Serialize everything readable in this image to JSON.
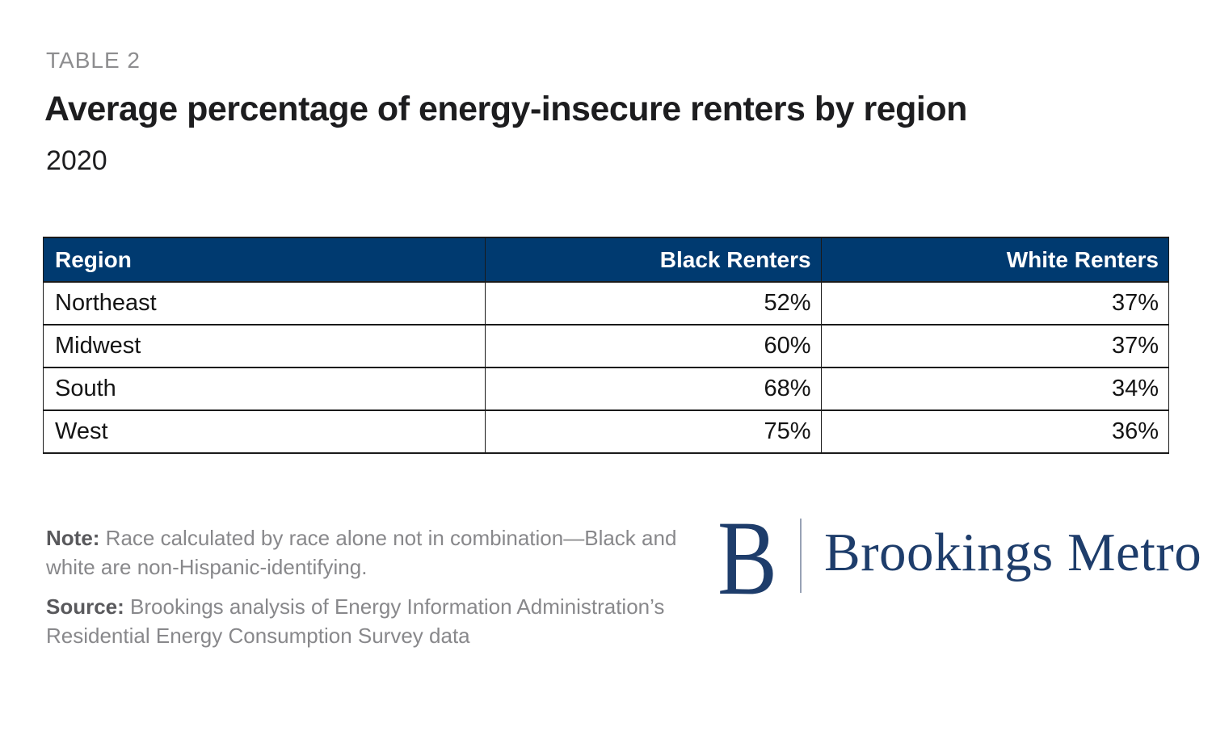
{
  "header": {
    "eyebrow": "TABLE 2",
    "title": "Average percentage of energy-insecure renters by region",
    "subtitle": "2020"
  },
  "chart_data": {
    "type": "table",
    "title": "Average percentage of energy-insecure renters by region",
    "subtitle": "2020",
    "columns": [
      "Region",
      "Black Renters",
      "White Renters"
    ],
    "rows": [
      [
        "Northeast",
        "52%",
        "37%"
      ],
      [
        "Midwest",
        "60%",
        "37%"
      ],
      [
        "South",
        "68%",
        "34%"
      ],
      [
        "West",
        "75%",
        "36%"
      ]
    ],
    "units": "percent",
    "series": [
      {
        "name": "Black Renters",
        "values": [
          52,
          60,
          68,
          75
        ]
      },
      {
        "name": "White Renters",
        "values": [
          37,
          37,
          34,
          36
        ]
      }
    ],
    "categories": [
      "Northeast",
      "Midwest",
      "South",
      "West"
    ]
  },
  "footnotes": {
    "note_label": "Note:",
    "note_text": " Race calculated by race alone not in combination—Black and white are non-Hispanic-identifying.",
    "source_label": "Source:",
    "source_text": " Brookings analysis of Energy Information Administration’s Residential Energy Consumption Survey data"
  },
  "logo": {
    "monogram": "B",
    "wordmark": "Brookings Metro"
  },
  "colors": {
    "table_header_bg": "#003A70",
    "table_header_text": "#ffffff",
    "table_border": "#1a1a1a",
    "logo_blue": "#1E3D6B",
    "eyebrow_gray": "#8d8d8f",
    "note_gray": "#88888b",
    "title_black": "#1d1d1f"
  }
}
